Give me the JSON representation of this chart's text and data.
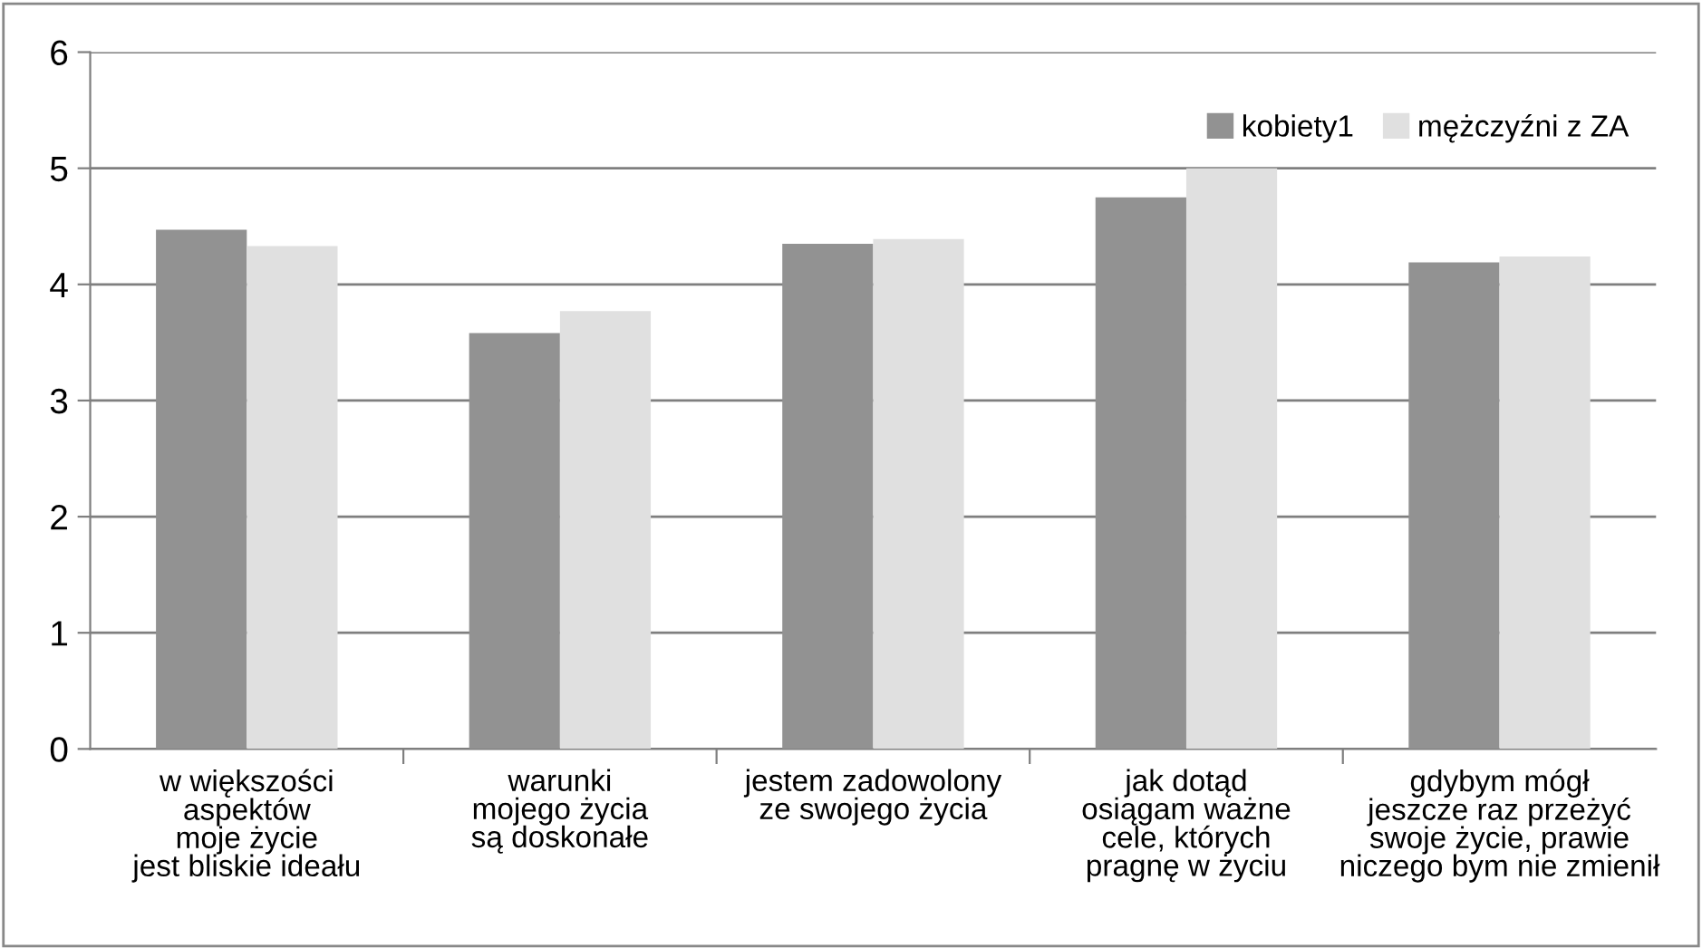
{
  "chart_data": {
    "type": "bar",
    "categories": [
      "w większości\naspektów\nmoje życie\njest bliskie ideału",
      "warunki\nmojego życia\nsą doskonałe",
      "jestem zadowolony\nze swojego życia",
      "jak dotąd\nosiągam ważne\ncele, których\npragnę w życiu",
      "gdybym mógł\njeszcze raz przeżyć\nswoje życie, prawie\nniczego bym nie zmienił"
    ],
    "series": [
      {
        "name": "kobiety1",
        "color": "#929292",
        "values": [
          4.47,
          3.58,
          4.35,
          4.75,
          4.19
        ]
      },
      {
        "name": "mężczyźni z ZA",
        "color": "#e0e0e0",
        "values": [
          4.33,
          3.77,
          4.39,
          5.0,
          4.24
        ]
      }
    ],
    "ylim": [
      0,
      6
    ],
    "yticks": [
      0,
      1,
      2,
      3,
      4,
      5,
      6
    ],
    "grid": "y",
    "legend": "top right"
  }
}
